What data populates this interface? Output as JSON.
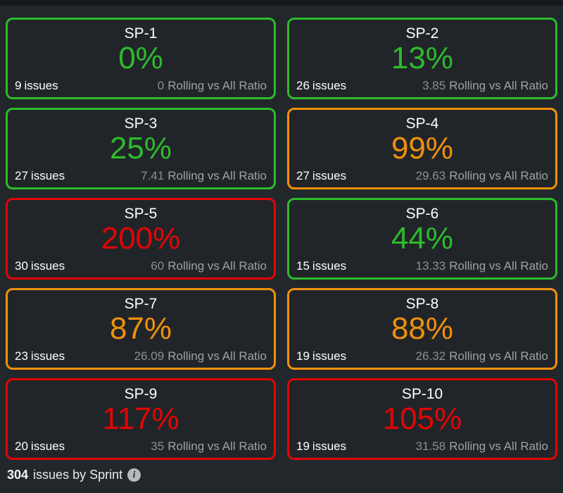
{
  "colors": {
    "green": "#2cbb2c",
    "orange": "#f1910a",
    "red": "#e30505",
    "background": "#22272b",
    "muted_text": "#9da2a6",
    "white_text": "#ffffff"
  },
  "cards": [
    {
      "title": "SP-1",
      "percent": "0%",
      "issues_count": "9",
      "issues_label": "issues",
      "ratio_value": "0",
      "ratio_label": "Rolling vs All Ratio",
      "status": "green"
    },
    {
      "title": "SP-2",
      "percent": "13%",
      "issues_count": "26",
      "issues_label": "issues",
      "ratio_value": "3.85",
      "ratio_label": "Rolling vs All Ratio",
      "status": "green"
    },
    {
      "title": "SP-3",
      "percent": "25%",
      "issues_count": "27",
      "issues_label": "issues",
      "ratio_value": "7.41",
      "ratio_label": "Rolling vs All Ratio",
      "status": "green"
    },
    {
      "title": "SP-4",
      "percent": "99%",
      "issues_count": "27",
      "issues_label": "issues",
      "ratio_value": "29.63",
      "ratio_label": "Rolling vs All Ratio",
      "status": "orange"
    },
    {
      "title": "SP-5",
      "percent": "200%",
      "issues_count": "30",
      "issues_label": "issues",
      "ratio_value": "60",
      "ratio_label": "Rolling vs All Ratio",
      "status": "red"
    },
    {
      "title": "SP-6",
      "percent": "44%",
      "issues_count": "15",
      "issues_label": "issues",
      "ratio_value": "13.33",
      "ratio_label": "Rolling vs All Ratio",
      "status": "green"
    },
    {
      "title": "SP-7",
      "percent": "87%",
      "issues_count": "23",
      "issues_label": "issues",
      "ratio_value": "26.09",
      "ratio_label": "Rolling vs All Ratio",
      "status": "orange"
    },
    {
      "title": "SP-8",
      "percent": "88%",
      "issues_count": "19",
      "issues_label": "issues",
      "ratio_value": "26.32",
      "ratio_label": "Rolling vs All Ratio",
      "status": "orange"
    },
    {
      "title": "SP-9",
      "percent": "117%",
      "issues_count": "20",
      "issues_label": "issues",
      "ratio_value": "35",
      "ratio_label": "Rolling vs All Ratio",
      "status": "red"
    },
    {
      "title": "SP-10",
      "percent": "105%",
      "issues_count": "19",
      "issues_label": "issues",
      "ratio_value": "31.58",
      "ratio_label": "Rolling vs All Ratio",
      "status": "red"
    }
  ],
  "footer": {
    "total_count": "304",
    "label": "issues by Sprint",
    "info_icon_glyph": "i"
  }
}
